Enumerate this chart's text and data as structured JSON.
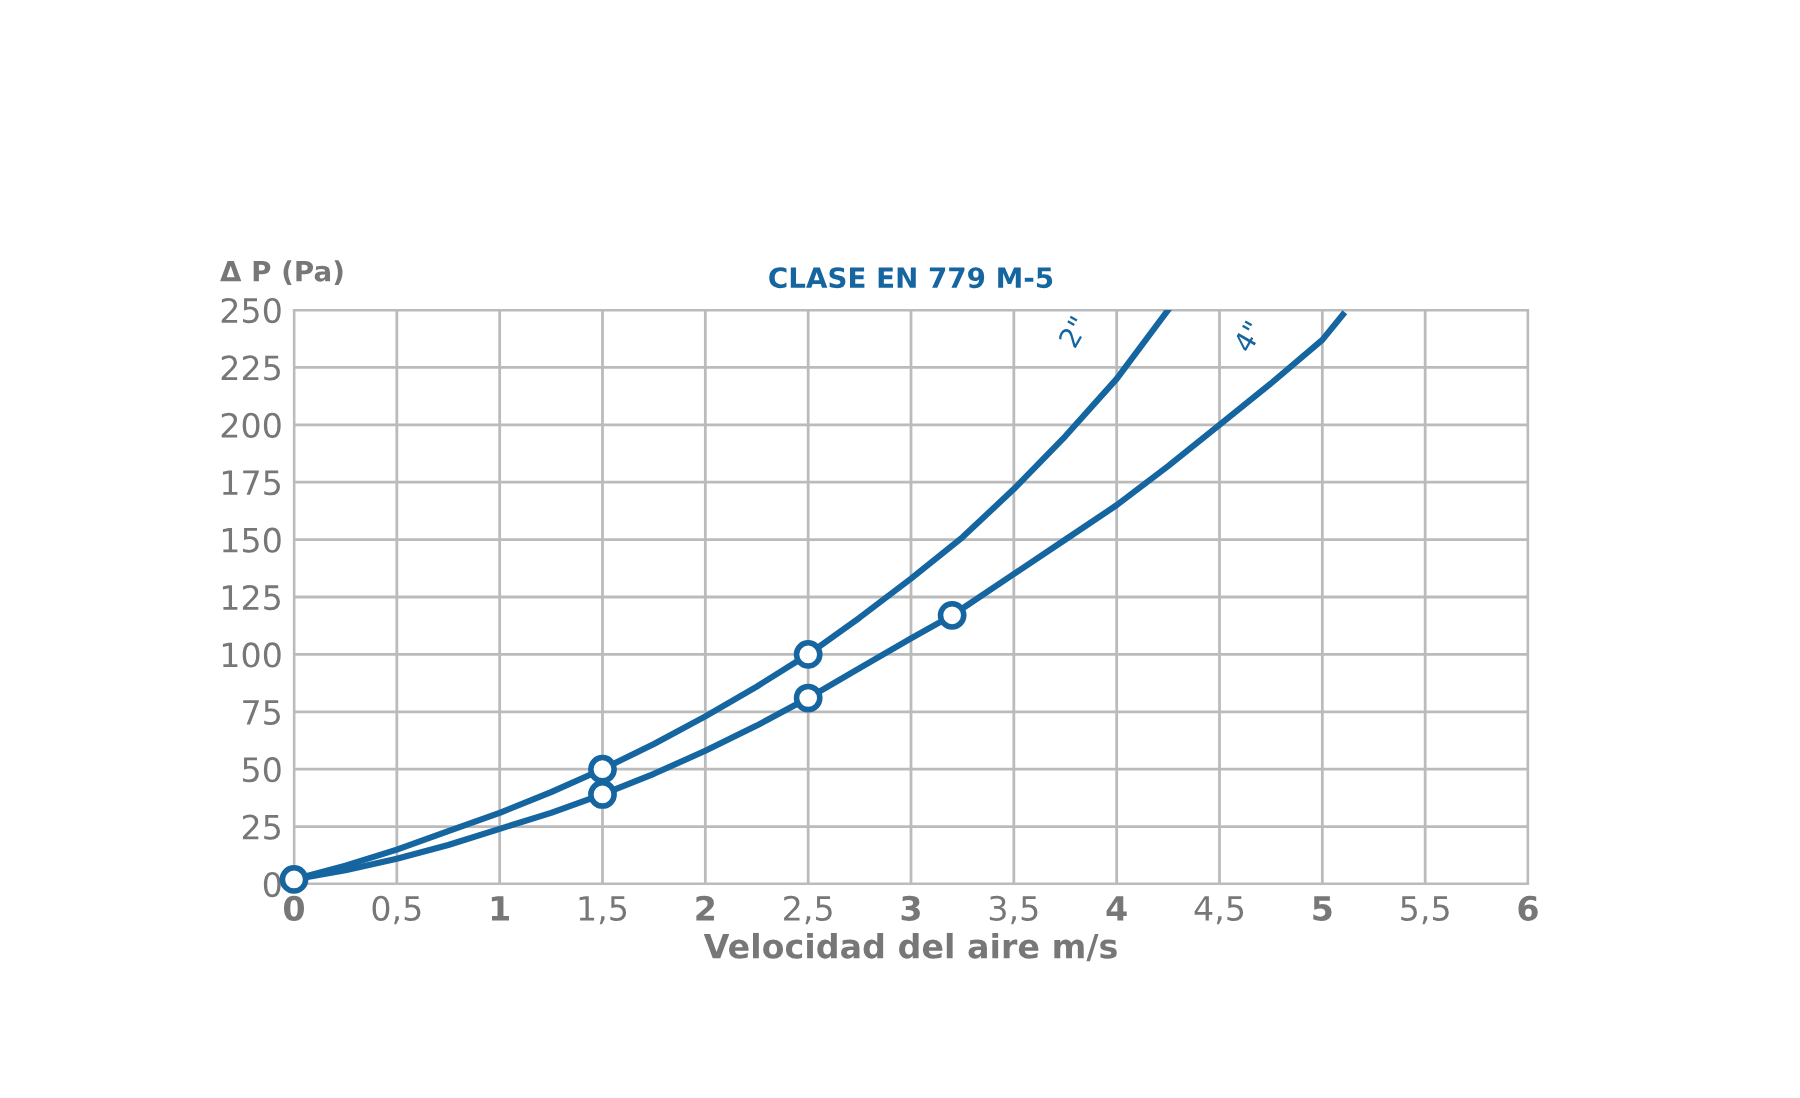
{
  "chart_data": {
    "type": "line",
    "title": "CLASE EN 779 M-5",
    "xlabel": "Velocidad del aire m/s",
    "ylabel": "Δ P (Pa)",
    "series": [
      {
        "name": "2\"",
        "color": "#1565a0",
        "marker": "none",
        "x": [
          0,
          0.25,
          0.5,
          0.75,
          1,
          1.25,
          1.5,
          1.75,
          2,
          2.25,
          2.5,
          2.75,
          3,
          3.25,
          3.5,
          3.75,
          4,
          4.25
        ],
        "values": [
          2,
          8,
          15,
          23,
          31,
          40,
          50,
          61,
          73,
          86,
          100,
          116,
          133,
          151,
          172,
          195,
          220,
          250
        ]
      },
      {
        "name": "4\"",
        "color": "#1565a0",
        "marker": "none",
        "x": [
          0,
          0.25,
          0.5,
          0.75,
          1,
          1.25,
          1.5,
          1.75,
          2,
          2.25,
          2.5,
          2.75,
          3,
          3.2,
          3.5,
          3.75,
          4,
          4.25,
          4.5,
          4.75,
          5,
          5.1
        ],
        "values": [
          2,
          6,
          11,
          17,
          24,
          31,
          39,
          48,
          58,
          69,
          81,
          94,
          107,
          117,
          135,
          150,
          165,
          182,
          200,
          218,
          237,
          248
        ]
      },
      {
        "type": "scatter",
        "marker": "circle",
        "color": "#1565a0",
        "x": [
          0,
          1.5,
          2.5
        ],
        "values": [
          2,
          50,
          100
        ]
      },
      {
        "type": "scatter",
        "marker": "circle",
        "color": "#1565a0",
        "x": [
          1.5,
          2.5,
          3.2
        ],
        "values": [
          39,
          81,
          117
        ]
      }
    ],
    "xlim": [
      0,
      6
    ],
    "ylim": [
      0,
      250
    ],
    "xticks": [
      0,
      {
        "value": 0.5,
        "label": "0,5"
      },
      1,
      {
        "value": 1.5,
        "label": "1,5"
      },
      2,
      {
        "value": 2.5,
        "label": "2,5"
      },
      3,
      {
        "value": 3.5,
        "label": "3,5"
      },
      4,
      {
        "value": 4.5,
        "label": "4,5"
      },
      5,
      {
        "value": 5.5,
        "label": "5,5"
      },
      6
    ],
    "yticks": [
      0,
      25,
      50,
      75,
      100,
      125,
      150,
      175,
      200,
      225,
      250
    ],
    "grid": true,
    "legend": false,
    "line_style": "solid"
  }
}
